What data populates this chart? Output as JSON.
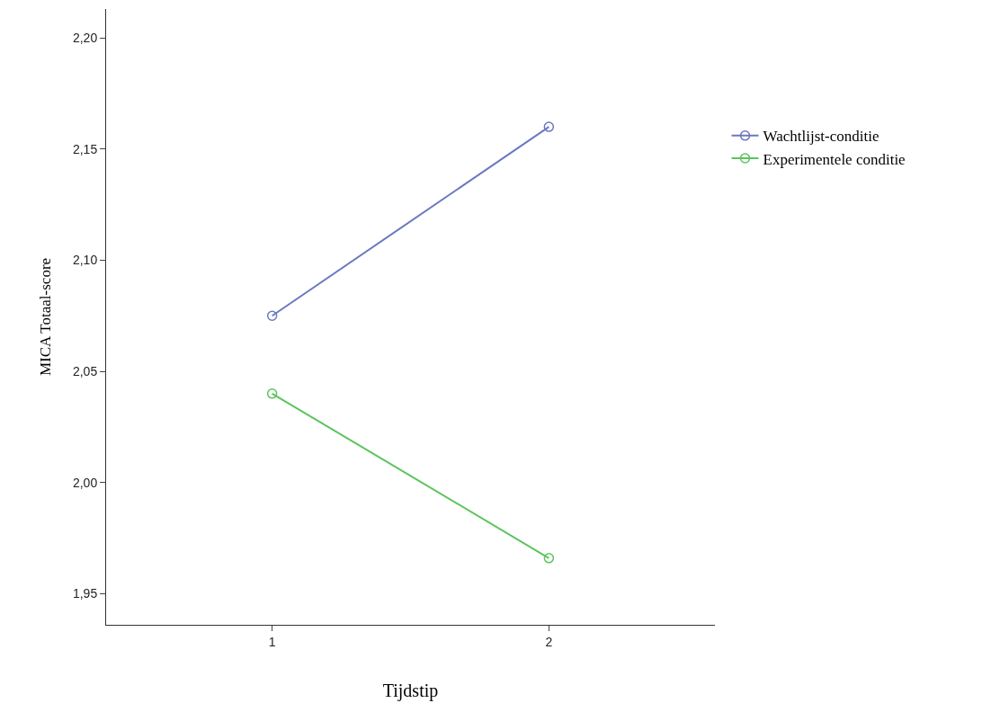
{
  "chart_data": {
    "type": "line",
    "xlabel": "Tijdstip",
    "ylabel": "MICA Totaal-score",
    "x": [
      1,
      2
    ],
    "series": [
      {
        "name": "Wachtlijst-conditie",
        "color": "#6b78c0",
        "values": [
          2.075,
          2.16
        ]
      },
      {
        "name": "Experimentele conditie",
        "color": "#5cc45c",
        "values": [
          2.04,
          1.966
        ]
      }
    ],
    "xlim": [
      0.4,
      2.6
    ],
    "xticks": [
      1,
      2
    ],
    "ylim": [
      1.936,
      2.213
    ],
    "yticks": [
      {
        "value": 1.95,
        "label": "1,95"
      },
      {
        "value": 2.0,
        "label": "2,00"
      },
      {
        "value": 2.05,
        "label": "2,05"
      },
      {
        "value": 2.1,
        "label": "2,10"
      },
      {
        "value": 2.15,
        "label": "2,15"
      },
      {
        "value": 2.2,
        "label": "2,20"
      }
    ],
    "grid": false,
    "legend": "right",
    "marker": "circle",
    "line_style": "solid"
  }
}
